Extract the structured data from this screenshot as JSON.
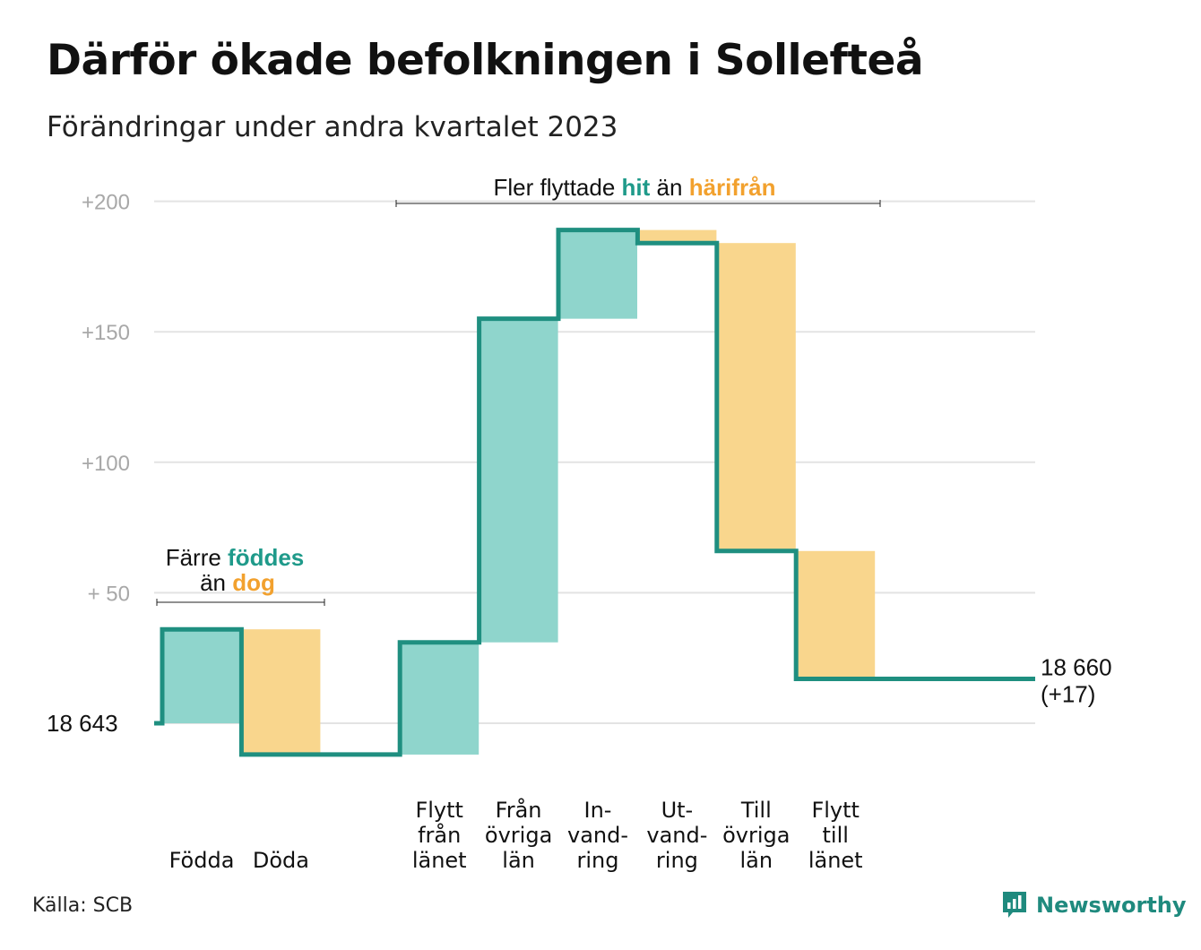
{
  "title": "Därför ökade befolkningen i Sollefteå",
  "subtitle": "Förändringar under andra kvartalet 2023",
  "source": "Källa: SCB",
  "brand": {
    "name": "Newsworthy",
    "icon": "bar-chart-speech-icon",
    "color": "#1f8a7e"
  },
  "colors": {
    "increase": "#8fd5cc",
    "decrease": "#f9d68d",
    "line": "#1f8f80",
    "highlight_increase": "#1f9a8a",
    "highlight_decrease": "#f2a12e",
    "grid": "#e3e3e3",
    "axis_text": "#a8a8a8"
  },
  "annotations": {
    "natural": {
      "line1_prefix": "Färre ",
      "line1_highlight": "föddes",
      "line2_prefix": "än ",
      "line2_highlight": "dog"
    },
    "migration": {
      "prefix": "Fler flyttade ",
      "highlight1": "hit",
      "middle": " än ",
      "highlight2": "härifrån"
    }
  },
  "chart_data": {
    "type": "waterfall",
    "title": "Därför ökade befolkningen i Sollefteå",
    "subtitle": "Förändringar under andra kvartalet 2023",
    "start_label": "18  643",
    "end_label_line1": "18 660",
    "end_label_line2": "(+17)",
    "start_value": 0,
    "end_value": 17,
    "ylim": [
      -14,
      200
    ],
    "yticks": [
      {
        "value": 200,
        "label": "+200"
      },
      {
        "value": 150,
        "label": "+150"
      },
      {
        "value": 100,
        "label": "+100"
      },
      {
        "value": 50,
        "label": "+  50"
      },
      {
        "value": 0,
        "label": ""
      }
    ],
    "grid": true,
    "steps": [
      {
        "label": [
          "Födda"
        ],
        "change": 36
      },
      {
        "label": [
          "Döda"
        ],
        "change": -48
      },
      {
        "label": [
          ""
        ],
        "change": 0
      },
      {
        "label": [
          "Flytt",
          "från",
          "länet"
        ],
        "change": 43
      },
      {
        "label": [
          "Från",
          "övriga",
          "län"
        ],
        "change": 124
      },
      {
        "label": [
          "In-",
          "vand-",
          "ring"
        ],
        "change": 34
      },
      {
        "label": [
          "Ut-",
          "vand-",
          "ring"
        ],
        "change": -5
      },
      {
        "label": [
          "Till",
          "övriga",
          "län"
        ],
        "change": -118
      },
      {
        "label": [
          "Flytt",
          "till",
          "länet"
        ],
        "change": -49
      },
      {
        "label": [
          ""
        ],
        "change": 0
      }
    ]
  }
}
